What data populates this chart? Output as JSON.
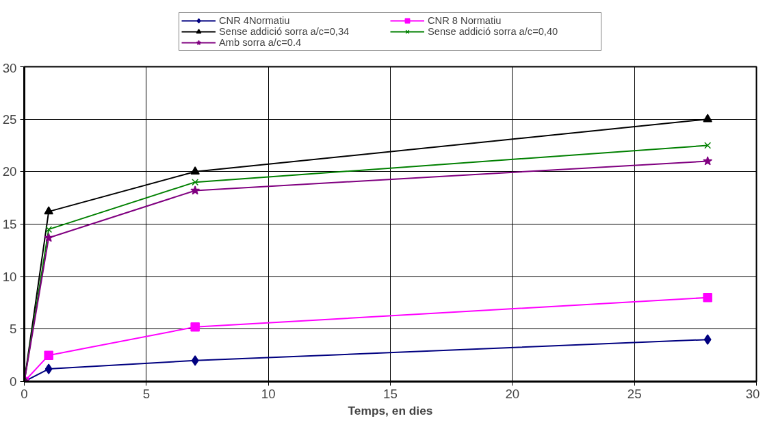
{
  "chart_data": {
    "type": "line",
    "xlabel": "Temps, en dies",
    "x": [
      0,
      1,
      7,
      28
    ],
    "series": [
      {
        "name": "CNR 4Normatiu",
        "color": "#000080",
        "marker": "diamond",
        "values": [
          0,
          1.2,
          2.0,
          4.0
        ]
      },
      {
        "name": "CNR 8 Normatiu",
        "color": "#ff00ff",
        "marker": "square",
        "values": [
          0,
          2.5,
          5.2,
          8.0
        ]
      },
      {
        "name": "Sense addició sorra a/c=0,34",
        "color": "#000000",
        "marker": "triangle",
        "values": [
          0,
          16.2,
          20.0,
          25.0
        ]
      },
      {
        "name": "Sense addició sorra a/c=0,40",
        "color": "#008000",
        "marker": "cross",
        "values": [
          0,
          14.5,
          19.0,
          22.5
        ]
      },
      {
        "name": "Amb sorra a/c=0.4",
        "color": "#800080",
        "marker": "star",
        "values": [
          0,
          13.7,
          18.2,
          21.0
        ]
      }
    ],
    "xlim": [
      0,
      30
    ],
    "ylim": [
      0,
      30
    ],
    "xticks": [
      0,
      5,
      10,
      15,
      20,
      25,
      30
    ],
    "yticks": [
      0,
      5,
      10,
      15,
      20,
      25,
      30
    ],
    "grid": true,
    "legend": "top"
  }
}
